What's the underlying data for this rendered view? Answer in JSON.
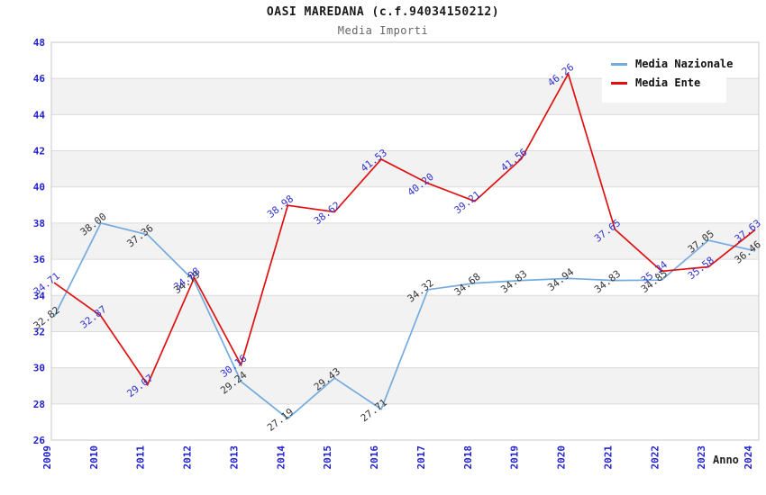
{
  "header": {
    "title": "OASI MAREDANA (c.f.94034150212)",
    "subtitle": "Media Importi"
  },
  "legend": {
    "items": [
      {
        "label": "Media Nazionale",
        "color": "#74ABDF"
      },
      {
        "label": "Media Ente",
        "color": "#E01010"
      }
    ]
  },
  "chart_data": {
    "type": "line",
    "title": "OASI MAREDANA (c.f.94034150212)",
    "subtitle": "Media Importi",
    "xlabel": "Anno",
    "x": [
      2009,
      2010,
      2011,
      2012,
      2013,
      2014,
      2015,
      2016,
      2017,
      2018,
      2019,
      2020,
      2021,
      2022,
      2023,
      2024
    ],
    "series": [
      {
        "name": "Media Nazionale",
        "color": "#74ABDF",
        "label_color": "#333333",
        "values": [
          32.82,
          38.0,
          37.36,
          34.79,
          29.24,
          27.19,
          29.43,
          27.71,
          34.32,
          34.68,
          34.83,
          34.94,
          34.83,
          34.85,
          37.05,
          36.46
        ]
      },
      {
        "name": "Media Ente",
        "color": "#E01010",
        "label_color": "#3333CC",
        "values": [
          34.71,
          32.87,
          29.07,
          34.98,
          30.16,
          38.98,
          38.62,
          41.53,
          40.2,
          39.21,
          41.56,
          46.26,
          37.65,
          35.34,
          35.58,
          37.63
        ]
      }
    ],
    "ylim": [
      26,
      48
    ],
    "ytick_step": 2,
    "grid": "horizontal",
    "band_color": "#F2F2F2",
    "gridline_color": "#DCDCDC",
    "border_color": "#C8C8C8",
    "axis_label_color": "#2222CC",
    "legend_position": "top-right",
    "value_decimals": 2
  }
}
